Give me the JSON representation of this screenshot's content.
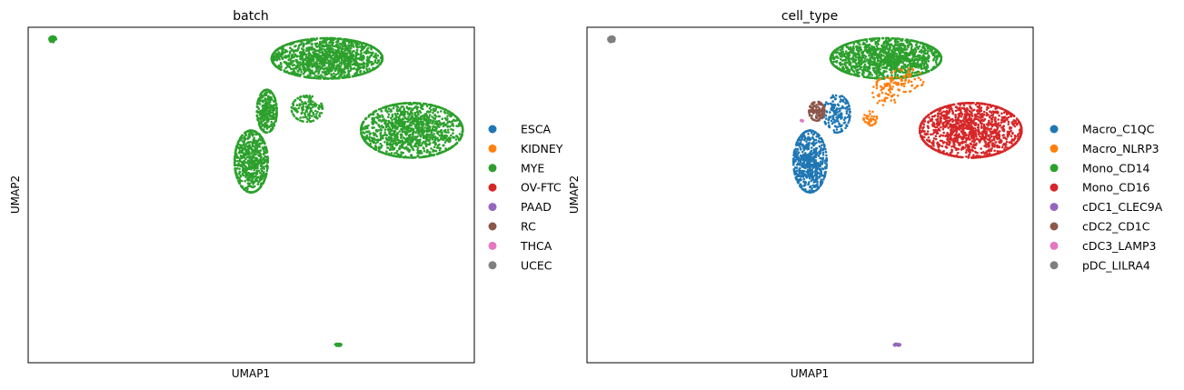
{
  "chart_data": [
    {
      "type": "scatter",
      "title": "batch",
      "xlabel": "UMAP1",
      "ylabel": "UMAP2",
      "xlim": [
        -6,
        14
      ],
      "ylim": [
        -4,
        10
      ],
      "grid": false,
      "legend_placement": "right",
      "legend": [
        {
          "label": "ESCA",
          "color": "#1f77b4"
        },
        {
          "label": "KIDNEY",
          "color": "#ff7f0e"
        },
        {
          "label": "MYE",
          "color": "#2ca02c"
        },
        {
          "label": "OV-FTC",
          "color": "#d62728"
        },
        {
          "label": "PAAD",
          "color": "#9467bd"
        },
        {
          "label": "RC",
          "color": "#8c564b"
        },
        {
          "label": "THCA",
          "color": "#e377c2"
        },
        {
          "label": "UCEC",
          "color": "#7f7f7f"
        }
      ],
      "clusters": [
        {
          "label": "MYE",
          "center": [
            7.4,
            8.7
          ],
          "spread": [
            2.5,
            0.85
          ],
          "n": 1500
        },
        {
          "label": "MYE",
          "center": [
            11.2,
            5.7
          ],
          "spread": [
            2.3,
            1.15
          ],
          "n": 1400
        },
        {
          "label": "MYE",
          "center": [
            4.0,
            4.4
          ],
          "spread": [
            0.75,
            1.3
          ],
          "n": 700
        },
        {
          "label": "MYE",
          "center": [
            4.7,
            6.5
          ],
          "spread": [
            0.45,
            0.9
          ],
          "n": 350
        },
        {
          "label": "MYE",
          "center": [
            6.5,
            6.6
          ],
          "spread": [
            0.7,
            0.55
          ],
          "n": 150
        },
        {
          "label": "MYE",
          "center": [
            -4.9,
            9.5
          ],
          "spread": [
            0.15,
            0.12
          ],
          "n": 80
        },
        {
          "label": "MYE",
          "center": [
            7.9,
            -3.25
          ],
          "spread": [
            0.14,
            0.05
          ],
          "n": 40
        }
      ]
    },
    {
      "type": "scatter",
      "title": "cell_type",
      "xlabel": "UMAP1",
      "ylabel": "UMAP2",
      "xlim": [
        -6,
        14
      ],
      "ylim": [
        -4,
        10
      ],
      "grid": false,
      "legend_placement": "right",
      "legend": [
        {
          "label": "Macro_C1QC",
          "color": "#1f77b4"
        },
        {
          "label": "Macro_NLRP3",
          "color": "#ff7f0e"
        },
        {
          "label": "Mono_CD14",
          "color": "#2ca02c"
        },
        {
          "label": "Mono_CD16",
          "color": "#d62728"
        },
        {
          "label": "cDC1_CLEC9A",
          "color": "#9467bd"
        },
        {
          "label": "cDC2_CD1C",
          "color": "#8c564b"
        },
        {
          "label": "cDC3_LAMP3",
          "color": "#e377c2"
        },
        {
          "label": "pDC_LILRA4",
          "color": "#7f7f7f"
        }
      ],
      "clusters": [
        {
          "label": "Mono_CD14",
          "center": [
            7.4,
            8.7
          ],
          "spread": [
            2.5,
            0.85
          ],
          "n": 1450
        },
        {
          "label": "Mono_CD16",
          "center": [
            11.2,
            5.7
          ],
          "spread": [
            2.3,
            1.15
          ],
          "n": 1400
        },
        {
          "label": "Macro_C1QC",
          "center": [
            4.0,
            4.4
          ],
          "spread": [
            0.75,
            1.3
          ],
          "n": 650
        },
        {
          "label": "Macro_C1QC",
          "center": [
            5.2,
            6.4
          ],
          "spread": [
            0.6,
            0.8
          ],
          "n": 180
        },
        {
          "label": "Macro_NLRP3",
          "center": [
            7.4,
            7.3
          ],
          "spread": [
            0.6,
            0.6
          ],
          "n": 70
        },
        {
          "label": "Macro_NLRP3",
          "center": [
            6.7,
            6.2
          ],
          "spread": [
            0.3,
            0.3
          ],
          "n": 35
        },
        {
          "label": "Macro_NLRP3",
          "center": [
            8.3,
            7.8
          ],
          "spread": [
            0.8,
            0.5
          ],
          "n": 60
        },
        {
          "label": "cDC2_CD1C",
          "center": [
            4.3,
            6.5
          ],
          "spread": [
            0.35,
            0.4
          ],
          "n": 110
        },
        {
          "label": "cDC3_LAMP3",
          "center": [
            3.6,
            6.1
          ],
          "spread": [
            0.08,
            0.05
          ],
          "n": 8
        },
        {
          "label": "pDC_LILRA4",
          "center": [
            -4.9,
            9.5
          ],
          "spread": [
            0.15,
            0.12
          ],
          "n": 80
        },
        {
          "label": "cDC1_CLEC9A",
          "center": [
            7.9,
            -3.25
          ],
          "spread": [
            0.14,
            0.05
          ],
          "n": 40
        }
      ]
    }
  ]
}
